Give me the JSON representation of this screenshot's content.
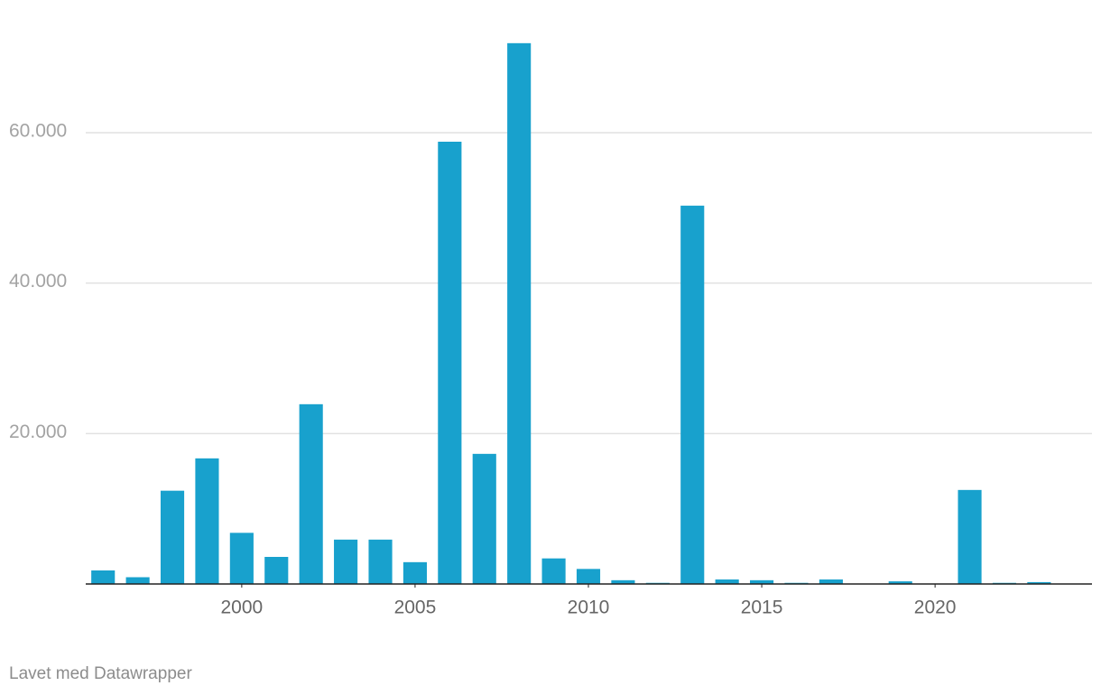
{
  "chart_data": {
    "type": "bar",
    "x": [
      1996,
      1997,
      1998,
      1999,
      2000,
      2001,
      2002,
      2003,
      2004,
      2005,
      2006,
      2007,
      2008,
      2009,
      2010,
      2011,
      2012,
      2013,
      2014,
      2015,
      2016,
      2017,
      2018,
      2019,
      2020,
      2021,
      2022,
      2023
    ],
    "values": [
      1800,
      900,
      12400,
      16700,
      6800,
      3600,
      23900,
      5900,
      5900,
      2900,
      58800,
      17300,
      71900,
      3400,
      2000,
      500,
      150,
      50300,
      600,
      500,
      150,
      600,
      0,
      350,
      0,
      12500,
      150,
      250
    ],
    "color": "#18a1cd",
    "xlim": [
      1995.5,
      2024.5
    ],
    "xticks": [
      2000,
      2005,
      2010,
      2015,
      2020
    ],
    "ylim": [
      0,
      72000
    ],
    "yticks": [
      {
        "value": 20000,
        "label": "20.000"
      },
      {
        "value": 40000,
        "label": "40.000"
      },
      {
        "value": 60000,
        "label": "60.000"
      }
    ],
    "grid": true,
    "footer": "Lavet med Datawrapper"
  }
}
